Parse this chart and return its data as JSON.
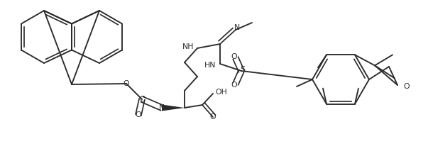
{
  "bg_color": "#ffffff",
  "line_color": "#2a2a2a",
  "line_width": 1.35,
  "figsize": [
    6.03,
    2.2
  ],
  "dpi": 100,
  "xlim": [
    0,
    603
  ],
  "ylim": [
    0,
    220
  ]
}
